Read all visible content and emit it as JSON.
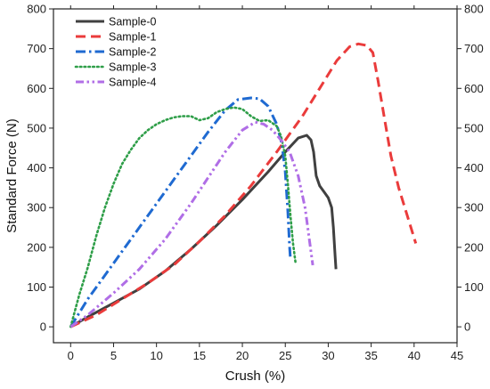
{
  "chart_data": {
    "type": "line",
    "title": "",
    "xlabel": "Crush (%)",
    "ylabel": "Standard Force (N)",
    "xlim": [
      -2,
      45
    ],
    "ylim": [
      -40,
      800
    ],
    "x_ticks": [
      0,
      5,
      10,
      15,
      20,
      25,
      30,
      35,
      40,
      45
    ],
    "y_ticks": [
      0,
      100,
      200,
      300,
      400,
      500,
      600,
      700,
      800
    ],
    "right_axis_mirrored": true,
    "grid": false,
    "legend_position": "top-left",
    "series": [
      {
        "name": "Sample-0",
        "color": "#404040",
        "style": "solid",
        "points": [
          [
            0,
            0
          ],
          [
            2,
            25
          ],
          [
            5,
            60
          ],
          [
            8,
            95
          ],
          [
            11,
            140
          ],
          [
            14,
            195
          ],
          [
            17,
            255
          ],
          [
            20,
            320
          ],
          [
            23,
            390
          ],
          [
            25,
            440
          ],
          [
            26.5,
            475
          ],
          [
            27.5,
            482
          ],
          [
            28,
            470
          ],
          [
            28.3,
            440
          ],
          [
            28.6,
            380
          ],
          [
            29,
            355
          ],
          [
            29.5,
            340
          ],
          [
            30,
            325
          ],
          [
            30.4,
            300
          ],
          [
            30.6,
            250
          ],
          [
            30.8,
            180
          ],
          [
            30.9,
            145
          ]
        ]
      },
      {
        "name": "Sample-1",
        "color": "#ea3b3b",
        "style": "dash",
        "points": [
          [
            0,
            0
          ],
          [
            3,
            30
          ],
          [
            6,
            70
          ],
          [
            9,
            110
          ],
          [
            12,
            155
          ],
          [
            15,
            215
          ],
          [
            18,
            280
          ],
          [
            21,
            355
          ],
          [
            24,
            440
          ],
          [
            27,
            530
          ],
          [
            29,
            600
          ],
          [
            31,
            670
          ],
          [
            32.5,
            705
          ],
          [
            33.5,
            712
          ],
          [
            34.5,
            708
          ],
          [
            35.2,
            690
          ],
          [
            35.8,
            620
          ],
          [
            36.5,
            530
          ],
          [
            37.3,
            430
          ],
          [
            38.2,
            350
          ],
          [
            39.2,
            280
          ],
          [
            40.2,
            210
          ]
        ]
      },
      {
        "name": "Sample-2",
        "color": "#1f6ad1",
        "style": "dashdot",
        "points": [
          [
            0,
            0
          ],
          [
            2,
            70
          ],
          [
            5,
            160
          ],
          [
            8,
            250
          ],
          [
            11,
            340
          ],
          [
            14,
            430
          ],
          [
            16,
            490
          ],
          [
            18,
            545
          ],
          [
            19.5,
            572
          ],
          [
            21,
            576
          ],
          [
            22,
            574
          ],
          [
            23,
            555
          ],
          [
            24,
            510
          ],
          [
            24.6,
            460
          ],
          [
            25,
            390
          ],
          [
            25.3,
            290
          ],
          [
            25.5,
            200
          ],
          [
            25.6,
            170
          ]
        ]
      },
      {
        "name": "Sample-3",
        "color": "#2e9e48",
        "style": "dot",
        "points": [
          [
            0,
            0
          ],
          [
            1,
            80
          ],
          [
            2,
            150
          ],
          [
            3,
            230
          ],
          [
            4,
            300
          ],
          [
            5,
            360
          ],
          [
            6,
            410
          ],
          [
            7,
            445
          ],
          [
            8,
            475
          ],
          [
            9,
            495
          ],
          [
            10,
            510
          ],
          [
            11,
            520
          ],
          [
            12,
            527
          ],
          [
            13,
            530
          ],
          [
            14,
            530
          ],
          [
            15,
            520
          ],
          [
            16,
            525
          ],
          [
            17,
            540
          ],
          [
            18,
            548
          ],
          [
            19,
            552
          ],
          [
            20,
            548
          ],
          [
            21,
            530
          ],
          [
            22,
            518
          ],
          [
            23,
            520
          ],
          [
            24,
            505
          ],
          [
            24.5,
            480
          ],
          [
            25,
            430
          ],
          [
            25.3,
            360
          ],
          [
            25.6,
            280
          ],
          [
            25.9,
            210
          ],
          [
            26.2,
            160
          ]
        ]
      },
      {
        "name": "Sample-4",
        "color": "#b06ee6",
        "style": "dashdotdot",
        "points": [
          [
            0,
            0
          ],
          [
            2,
            30
          ],
          [
            5,
            85
          ],
          [
            8,
            145
          ],
          [
            11,
            220
          ],
          [
            14,
            310
          ],
          [
            16,
            375
          ],
          [
            18,
            440
          ],
          [
            20,
            495
          ],
          [
            21.5,
            515
          ],
          [
            22.5,
            510
          ],
          [
            23.5,
            495
          ],
          [
            24.5,
            470
          ],
          [
            25.5,
            440
          ],
          [
            26.5,
            380
          ],
          [
            27.3,
            300
          ],
          [
            27.8,
            220
          ],
          [
            28.2,
            155
          ]
        ]
      }
    ]
  }
}
